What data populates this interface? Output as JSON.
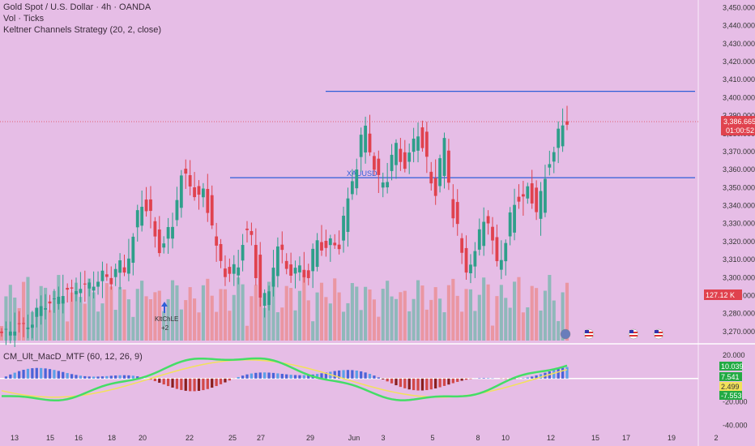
{
  "legend": {
    "symbol": "Gold Spot / U.S. Dollar · 4h · OANDA",
    "volume": "Vol · Ticks",
    "strategy": "Keltner Channels Strategy (20, 2, close)",
    "macd": "CM_Ult_MacD_MTF (60, 12, 26, 9)"
  },
  "colors": {
    "background": "#e6bde6",
    "up": "#2e9f8a",
    "down": "#e0424e",
    "up_volume": "#7fb7b2",
    "down_volume": "#ea8f95",
    "level_line": "#2f5fd8",
    "macd_line": "#44dd66",
    "signal_line": "#f2e15a"
  },
  "price_badge": {
    "price": "3,386.665",
    "countdown": "01:00:52"
  },
  "volume_badge": "127.12 K",
  "macd_badges": [
    "10.039",
    "7.541",
    "2.499",
    "-7.553"
  ],
  "annotations": {
    "label": "XAUUSD",
    "entry_line1": "KltChLE",
    "entry_line2": "+2"
  },
  "event_icons": [
    "flag-us-icon",
    "flag-us-icon",
    "flag-us-icon",
    "lightning-icon"
  ],
  "chart_data": {
    "type": "candlestick",
    "title": "Gold Spot / U.S. Dollar · 4h · OANDA",
    "price_axis": {
      "ticks": [
        "3,450.000",
        "3,440.000",
        "3,430.000",
        "3,420.000",
        "3,410.000",
        "3,400.000",
        "3,390.000",
        "3,380.000",
        "3,370.000",
        "3,360.000",
        "3,350.000",
        "3,340.000",
        "3,330.000",
        "3,320.000",
        "3,310.000",
        "3,300.000",
        "3,290.000",
        "3,280.000",
        "3,270.000"
      ],
      "range": [
        3265,
        3452
      ]
    },
    "macd_axis": {
      "ticks": [
        "20.000",
        "-20.000",
        "-40.000"
      ],
      "range": [
        -44,
        27
      ]
    },
    "time_axis": [
      "13",
      "15",
      "16",
      "18",
      "20",
      "22",
      "25",
      "27",
      "29",
      "Jun",
      "3",
      "5",
      "8",
      "10",
      "12",
      "15",
      "17",
      "19",
      "2"
    ],
    "horizontal_levels": [
      3403.5,
      3355.5
    ],
    "candles": [],
    "ohlc_seed": [
      [
        3270,
        3272,
        3262,
        3268
      ],
      [
        3268,
        3276,
        3266,
        3274
      ],
      [
        3274,
        3280,
        3270,
        3272
      ],
      [
        3272,
        3278,
        3266,
        3276
      ],
      [
        3276,
        3285,
        3274,
        3283
      ],
      [
        3283,
        3290,
        3280,
        3287
      ],
      [
        3287,
        3293,
        3282,
        3285
      ],
      [
        3285,
        3296,
        3284,
        3294
      ],
      [
        3294,
        3300,
        3289,
        3291
      ],
      [
        3291,
        3298,
        3286,
        3296
      ],
      [
        3296,
        3302,
        3290,
        3293
      ],
      [
        3293,
        3301,
        3288,
        3299
      ],
      [
        3295,
        3305,
        3291,
        3302
      ],
      [
        3302,
        3306,
        3296,
        3299
      ],
      [
        3299,
        3310,
        3297,
        3307
      ],
      [
        3307,
        3315,
        3300,
        3303
      ],
      [
        3303,
        3330,
        3301,
        3326
      ],
      [
        3326,
        3348,
        3322,
        3345
      ],
      [
        3345,
        3350,
        3329,
        3333
      ],
      [
        3333,
        3339,
        3312,
        3316
      ],
      [
        3316,
        3324,
        3308,
        3320
      ],
      [
        3320,
        3336,
        3318,
        3332
      ],
      [
        3332,
        3363,
        3330,
        3360
      ],
      [
        3360,
        3365,
        3348,
        3352
      ],
      [
        3352,
        3357,
        3338,
        3343
      ],
      [
        3343,
        3354,
        3335,
        3351
      ],
      [
        3351,
        3357,
        3318,
        3322
      ],
      [
        3322,
        3332,
        3303,
        3307
      ],
      [
        3307,
        3313,
        3296,
        3300
      ],
      [
        3300,
        3312,
        3296,
        3308
      ],
      [
        3308,
        3328,
        3305,
        3326
      ],
      [
        3326,
        3334,
        3318,
        3321
      ],
      [
        3321,
        3326,
        3278,
        3282
      ],
      [
        3282,
        3298,
        3275,
        3294
      ],
      [
        3294,
        3322,
        3290,
        3318
      ],
      [
        3318,
        3324,
        3305,
        3310
      ],
      [
        3310,
        3316,
        3296,
        3301
      ],
      [
        3301,
        3310,
        3290,
        3306
      ],
      [
        3306,
        3314,
        3298,
        3300
      ],
      [
        3300,
        3327,
        3297,
        3322
      ],
      [
        3322,
        3330,
        3312,
        3316
      ],
      [
        3316,
        3325,
        3305,
        3320
      ],
      [
        3320,
        3335,
        3314,
        3318
      ],
      [
        3318,
        3350,
        3315,
        3346
      ],
      [
        3346,
        3368,
        3340,
        3363
      ],
      [
        3363,
        3388,
        3359,
        3384
      ],
      [
        3384,
        3392,
        3364,
        3368
      ],
      [
        3368,
        3374,
        3345,
        3350
      ],
      [
        3350,
        3362,
        3340,
        3357
      ],
      [
        3357,
        3377,
        3354,
        3374
      ],
      [
        3374,
        3380,
        3358,
        3362
      ],
      [
        3362,
        3372,
        3350,
        3369
      ],
      [
        3369,
        3389,
        3364,
        3385
      ],
      [
        3385,
        3404,
        3350,
        3360
      ],
      [
        3360,
        3368,
        3342,
        3347
      ],
      [
        3347,
        3380,
        3344,
        3376
      ],
      [
        3376,
        3382,
        3340,
        3345
      ],
      [
        3345,
        3352,
        3318,
        3322
      ],
      [
        3322,
        3328,
        3296,
        3302
      ],
      [
        3302,
        3316,
        3298,
        3313
      ],
      [
        3313,
        3338,
        3311,
        3335
      ],
      [
        3335,
        3342,
        3320,
        3327
      ],
      [
        3327,
        3334,
        3300,
        3305
      ],
      [
        3305,
        3325,
        3303,
        3320
      ],
      [
        3320,
        3350,
        3318,
        3346
      ],
      [
        3346,
        3352,
        3337,
        3342
      ],
      [
        3342,
        3357,
        3335,
        3354
      ],
      [
        3354,
        3358,
        3325,
        3330
      ],
      [
        3330,
        3366,
        3328,
        3362
      ],
      [
        3362,
        3373,
        3345,
        3369
      ],
      [
        3369,
        3390,
        3365,
        3388
      ],
      [
        3388,
        3399,
        3372,
        3386
      ]
    ]
  }
}
